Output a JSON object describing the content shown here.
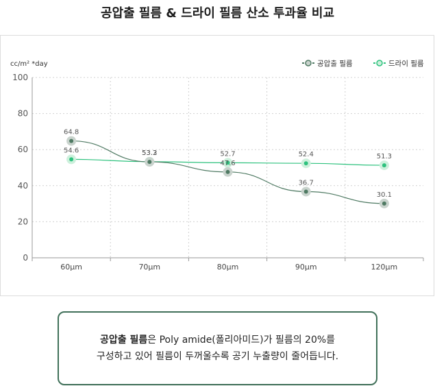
{
  "title": "공압출 필름 & 드라이 필름 산소 투과율 비교",
  "chart_data": {
    "type": "line",
    "ylabel": "cc/m² *day",
    "categories": [
      "60μm",
      "70μm",
      "80μm",
      "90μm",
      "120μm"
    ],
    "ylim": [
      0,
      100
    ],
    "yticks": [
      "0",
      "20",
      "40",
      "60",
      "80",
      "100"
    ],
    "grid": true,
    "legend_position": "top-right",
    "series": [
      {
        "name": "공압출 필름",
        "color": "#4f7a63",
        "halo": "#c9d3cd",
        "values": [
          64.8,
          53.2,
          47.6,
          36.7,
          30.1
        ],
        "labels": [
          "64.8",
          "53.2",
          "47.6",
          "36.7",
          "30.1"
        ]
      },
      {
        "name": "드라이 필름",
        "color": "#2ec27e",
        "halo": "#cdf0dc",
        "values": [
          54.6,
          53.3,
          52.7,
          52.4,
          51.3
        ],
        "labels": [
          "54.6",
          "53.3",
          "52.7",
          "52.4",
          "51.3"
        ]
      }
    ]
  },
  "note": {
    "bold": "공압출 필름",
    "line1_rest": "은 Poly amide(폴리아미드)가 필름의 20%를",
    "line2": "구성하고 있어 필름이 두꺼울수록 공기 누출량이 줄어듭니다."
  }
}
